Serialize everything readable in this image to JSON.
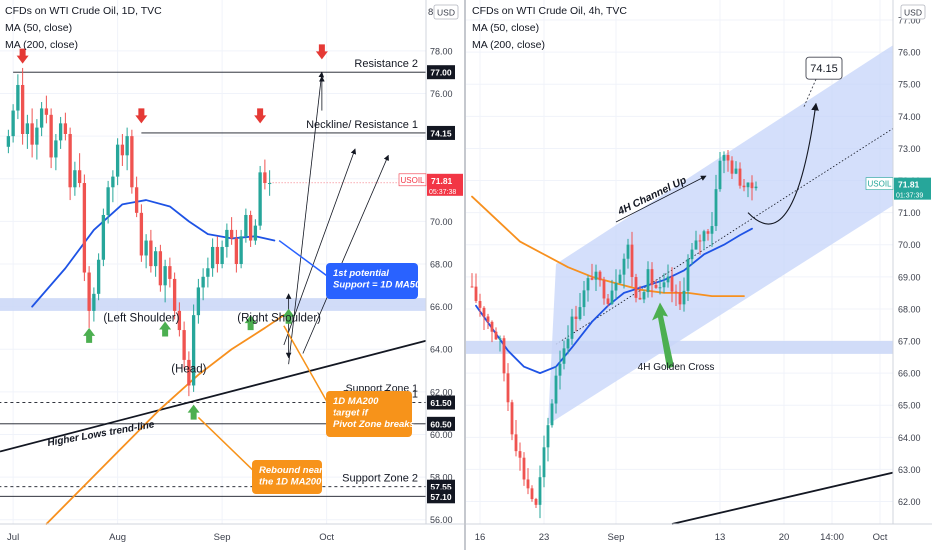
{
  "colors": {
    "up": "#26a69a",
    "down": "#ef5350",
    "ma50": "#1e53e5",
    "ma200": "#f7901e",
    "band": "#c9d6f7",
    "channel": "#c6d4fa",
    "callout_blue": "#2962ff",
    "callout_orange": "#f7931a",
    "arrow_red": "#e53935",
    "arrow_green": "#4caf50",
    "price_tag": "#f23645",
    "text": "#131722",
    "axis_text": "#3a3e4a"
  },
  "chart_data": [
    {
      "type": "candlestick",
      "title": "CFDs on WTI Crude Oil, 1D, TVC",
      "indicators": [
        "MA (50, close)",
        "MA (200, close)"
      ],
      "symbol": "USOIL",
      "currency_fragment": "8",
      "currency": "USD",
      "last_price": "71.81",
      "countdown": "05:37:38",
      "ylim": [
        55.8,
        80.2
      ],
      "y_ticks": [
        "56.00",
        "58.00",
        "60.00",
        "62.00",
        "64.00",
        "66.00",
        "68.00",
        "70.00",
        "72.00",
        "74.00",
        "76.00",
        "78.00"
      ],
      "x_ticks": [
        {
          "label": "Jul",
          "bar": 1
        },
        {
          "label": "Aug",
          "bar": 23
        },
        {
          "label": "Sep",
          "bar": 45
        },
        {
          "label": "Oct",
          "bar": 67
        }
      ],
      "bar_count": 88,
      "candles": [
        [
          73.5,
          74.3,
          73.2,
          74.0
        ],
        [
          74.0,
          75.5,
          73.7,
          75.2
        ],
        [
          75.2,
          76.9,
          74.8,
          76.4
        ],
        [
          76.4,
          77.2,
          73.6,
          74.1
        ],
        [
          74.1,
          75.0,
          73.4,
          74.6
        ],
        [
          74.6,
          75.3,
          73.0,
          73.6
        ],
        [
          73.6,
          74.8,
          72.9,
          74.4
        ],
        [
          74.4,
          75.6,
          74.0,
          75.3
        ],
        [
          75.3,
          75.9,
          74.6,
          75.0
        ],
        [
          75.0,
          75.3,
          72.5,
          73.0
        ],
        [
          73.0,
          74.1,
          72.4,
          73.8
        ],
        [
          73.8,
          74.9,
          73.4,
          74.6
        ],
        [
          74.6,
          75.1,
          73.8,
          74.1
        ],
        [
          74.1,
          74.4,
          71.0,
          71.6
        ],
        [
          71.6,
          72.8,
          71.2,
          72.4
        ],
        [
          72.4,
          73.2,
          71.6,
          71.8
        ],
        [
          71.8,
          72.2,
          67.2,
          67.6
        ],
        [
          67.6,
          67.9,
          65.0,
          65.8
        ],
        [
          65.8,
          66.9,
          65.3,
          66.6
        ],
        [
          66.6,
          68.5,
          66.3,
          68.2
        ],
        [
          68.2,
          70.6,
          67.9,
          70.3
        ],
        [
          70.3,
          71.9,
          69.9,
          71.6
        ],
        [
          71.6,
          72.4,
          70.9,
          72.1
        ],
        [
          72.1,
          73.9,
          71.7,
          73.6
        ],
        [
          73.6,
          74.1,
          72.6,
          73.1
        ],
        [
          73.1,
          74.4,
          72.4,
          74.0
        ],
        [
          74.0,
          74.3,
          71.3,
          71.6
        ],
        [
          71.6,
          72.1,
          70.2,
          70.4
        ],
        [
          70.4,
          70.8,
          68.1,
          68.4
        ],
        [
          68.4,
          69.4,
          67.8,
          69.1
        ],
        [
          69.1,
          69.6,
          67.6,
          67.9
        ],
        [
          67.9,
          68.8,
          67.4,
          68.6
        ],
        [
          68.6,
          68.9,
          66.7,
          67.0
        ],
        [
          67.0,
          68.2,
          66.2,
          67.9
        ],
        [
          67.9,
          68.3,
          66.9,
          67.3
        ],
        [
          67.3,
          67.6,
          65.4,
          65.8
        ],
        [
          65.8,
          66.2,
          64.6,
          64.9
        ],
        [
          64.9,
          65.3,
          63.1,
          63.5
        ],
        [
          63.5,
          63.9,
          61.8,
          62.3
        ],
        [
          62.3,
          66.1,
          62.0,
          65.6
        ],
        [
          65.6,
          67.3,
          65.2,
          66.9
        ],
        [
          66.9,
          67.8,
          66.3,
          67.4
        ],
        [
          67.4,
          68.3,
          66.9,
          67.8
        ],
        [
          67.8,
          69.2,
          67.4,
          68.8
        ],
        [
          68.8,
          69.3,
          67.6,
          68.0
        ],
        [
          68.0,
          69.1,
          67.8,
          68.8
        ],
        [
          68.8,
          69.9,
          68.3,
          69.6
        ],
        [
          69.6,
          70.2,
          68.9,
          69.2
        ],
        [
          69.2,
          69.6,
          67.6,
          68.0
        ],
        [
          68.0,
          69.6,
          67.8,
          69.3
        ],
        [
          69.3,
          70.6,
          69.0,
          70.3
        ],
        [
          70.3,
          70.5,
          68.8,
          69.1
        ],
        [
          69.1,
          70.1,
          68.9,
          69.8
        ],
        [
          69.8,
          72.6,
          69.6,
          72.3
        ],
        [
          72.3,
          72.9,
          71.5,
          71.8
        ],
        [
          71.8,
          72.4,
          71.2,
          71.8
        ]
      ],
      "ma50": [
        [
          5,
          66.0
        ],
        [
          12,
          67.8
        ],
        [
          18,
          69.6
        ],
        [
          24,
          70.8
        ],
        [
          29,
          71.0
        ],
        [
          34,
          70.7
        ],
        [
          38,
          70.0
        ],
        [
          42,
          69.4
        ],
        [
          47,
          69.2
        ],
        [
          52,
          69.3
        ],
        [
          56,
          69.1
        ]
      ],
      "ma200": [
        [
          8,
          55.8
        ],
        [
          16,
          57.6
        ],
        [
          24,
          59.4
        ],
        [
          32,
          61.2
        ],
        [
          40,
          62.8
        ],
        [
          47,
          64.0
        ],
        [
          54,
          65.0
        ],
        [
          58,
          65.6
        ]
      ],
      "levels": [
        {
          "price": 77.0,
          "label": "77.00",
          "style": "solid",
          "from_bar": 1,
          "name": "Resistance 2"
        },
        {
          "price": 74.15,
          "label": "74.15",
          "style": "solid",
          "from_bar": 28,
          "name": "Neckline/ Resistance 1"
        },
        {
          "price": 61.5,
          "label": "61.50",
          "style": "dashed",
          "from_bar": 0,
          "name": "Support Zone 1"
        },
        {
          "price": 60.5,
          "label": "60.50",
          "style": "solid",
          "from_bar": 0,
          "name": ""
        },
        {
          "price": 57.55,
          "label": "57.55",
          "style": "dashed",
          "from_bar": 0,
          "name": "Support Zone 2"
        },
        {
          "price": 57.1,
          "label": "57.10",
          "style": "solid",
          "from_bar": 0,
          "name": ""
        }
      ],
      "pivot_zone": [
        65.8,
        66.4
      ],
      "annotations": {
        "left_shoulder": "(Left Shoulder)",
        "right_shoulder": "(Right Shoulder)",
        "head": "(Head)",
        "trend_line": "Higher Lows trend-line",
        "callout_ma50": "1st potential\nSupport = 1D  MA50",
        "callout_ma200": "1D MA200\ntarget if\nPivot Zone breaks",
        "callout_rebound": "Rebound near\nthe 1D MA200",
        "support_zone_1": "Support Zone 1"
      }
    },
    {
      "type": "candlestick",
      "title": "CFDs on WTI Crude Oil, 4h, TVC",
      "indicators": [
        "MA (50, close)",
        "MA (200, close)"
      ],
      "symbol": "USOIL",
      "currency": "USD",
      "last_price": "71.81",
      "countdown": "01:37:39",
      "ylim": [
        61.3,
        77.5
      ],
      "y_ticks": [
        "62.00",
        "63.00",
        "64.00",
        "65.00",
        "66.00",
        "67.00",
        "68.00",
        "69.00",
        "70.00",
        "71.00",
        "72.00",
        "73.00",
        "74.00",
        "75.00",
        "76.00",
        "77.00"
      ],
      "x_ticks": [
        {
          "label": "16",
          "bar": 2
        },
        {
          "label": "23",
          "bar": 18
        },
        {
          "label": "Sep",
          "bar": 36
        },
        {
          "label": "13",
          "bar": 62
        },
        {
          "label": "20",
          "bar": 78
        },
        {
          "label": "14:00",
          "bar": 90
        },
        {
          "label": "Oct",
          "bar": 102
        }
      ],
      "bar_count": 105,
      "candles_seed": {
        "count": 72
      },
      "anchors": [
        [
          0,
          68.7
        ],
        [
          4,
          67.9
        ],
        [
          8,
          66.9
        ],
        [
          11,
          64.3
        ],
        [
          14,
          62.8
        ],
        [
          17,
          61.8
        ],
        [
          19,
          63.5
        ],
        [
          22,
          66.0
        ],
        [
          25,
          67.3
        ],
        [
          28,
          68.2
        ],
        [
          31,
          69.1
        ],
        [
          35,
          68.4
        ],
        [
          38,
          69.3
        ],
        [
          40,
          69.9
        ],
        [
          42,
          68.3
        ],
        [
          45,
          69.0
        ],
        [
          48,
          68.5
        ],
        [
          50,
          68.8
        ],
        [
          53,
          68.1
        ],
        [
          55,
          69.5
        ],
        [
          58,
          70.2
        ],
        [
          61,
          70.7
        ],
        [
          63,
          72.8
        ],
        [
          65,
          72.6
        ],
        [
          67,
          72.2
        ],
        [
          70,
          71.7
        ],
        [
          71,
          71.81
        ]
      ],
      "ma50": [
        [
          1,
          68.1
        ],
        [
          5,
          67.4
        ],
        [
          9,
          66.7
        ],
        [
          13,
          66.2
        ],
        [
          17,
          66.0
        ],
        [
          21,
          66.2
        ],
        [
          25,
          66.8
        ],
        [
          30,
          67.6
        ],
        [
          34,
          68.1
        ],
        [
          38,
          68.5
        ],
        [
          43,
          68.7
        ],
        [
          48,
          68.9
        ],
        [
          53,
          69.2
        ],
        [
          58,
          69.7
        ],
        [
          63,
          70.0
        ],
        [
          67,
          70.3
        ],
        [
          70,
          70.5
        ]
      ],
      "ma200": [
        [
          0,
          71.5
        ],
        [
          6,
          70.8
        ],
        [
          12,
          70.1
        ],
        [
          18,
          69.7
        ],
        [
          24,
          69.3
        ],
        [
          30,
          69.0
        ],
        [
          36,
          68.8
        ],
        [
          42,
          68.6
        ],
        [
          48,
          68.5
        ],
        [
          54,
          68.5
        ],
        [
          60,
          68.4
        ],
        [
          68,
          68.4
        ]
      ],
      "channel": {
        "p1": [
          19,
          64.4
        ],
        "p2": [
          110,
          71.6
        ],
        "p3": [
          110,
          76.6
        ],
        "p4": [
          21,
          69.4
        ]
      },
      "mid_line": [
        [
          21,
          66.9
        ],
        [
          110,
          74.0
        ]
      ],
      "zone": [
        66.6,
        67.0
      ],
      "target": "74.15",
      "labels": {
        "channel_up": "4H Channel Up",
        "golden_cross": "4H Golden Cross"
      }
    }
  ]
}
